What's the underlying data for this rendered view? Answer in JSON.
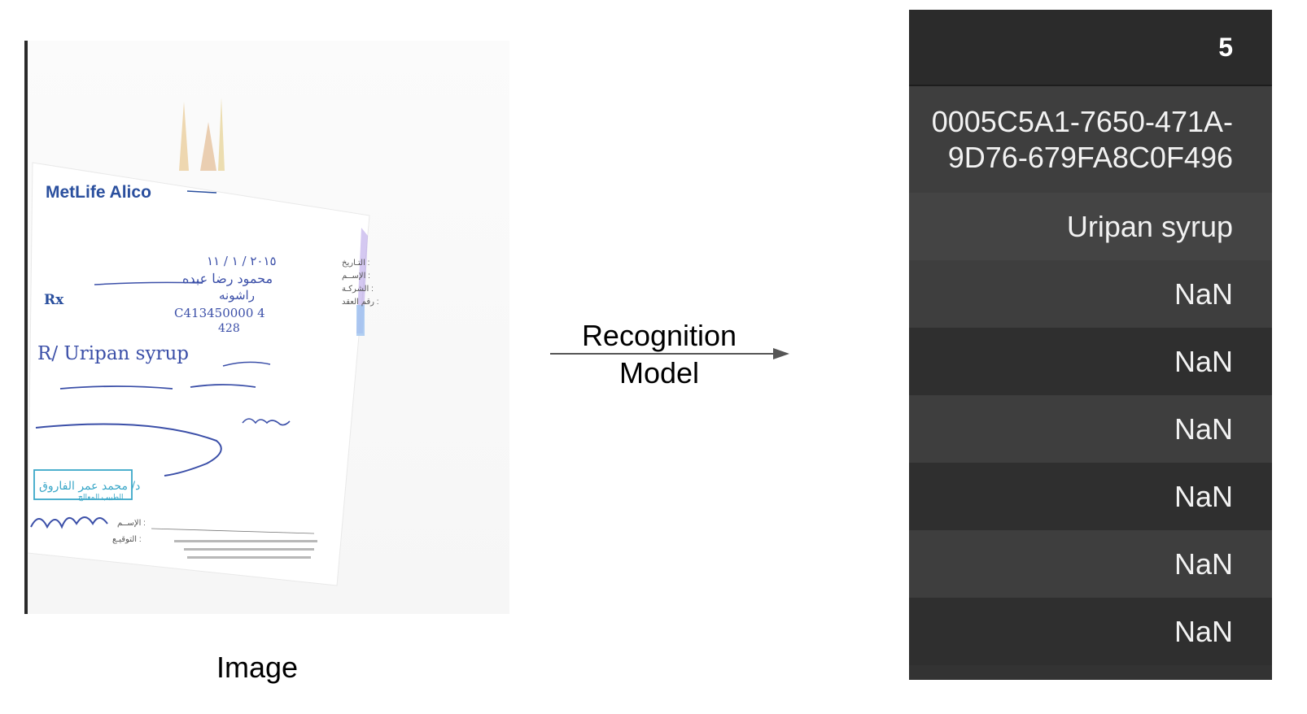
{
  "document": {
    "brand": "MetLife Alico",
    "rx_mark": "Rx",
    "field_labels": [
      "التـاريخ :",
      "الإســم :",
      "الشركـة :",
      "رقم العقد :"
    ],
    "field_values": [
      "٢٠١٥ / ١ / ١١",
      "محمود رضا عبده",
      "راشونه",
      "C413450000 4",
      "428"
    ],
    "prescription_line": "R/ Uripan syrup",
    "stamp_text": "د/ محمد عمر الفاروق",
    "stamp_subtitle": "الطبيب المعالج",
    "footer_labels": [
      "الإســم :",
      "التوقيـع :"
    ],
    "caption": "Image"
  },
  "arrow": {
    "label_line1": "Recognition",
    "label_line2": "Model"
  },
  "result_table": {
    "header": "5",
    "rows": [
      "0005C5A1-7650-471A-9D76-679FA8C0F496",
      "Uripan syrup",
      "NaN",
      "NaN",
      "NaN",
      "NaN",
      "NaN",
      "NaN"
    ]
  },
  "colors": {
    "brand_blue": "#2a4f9e",
    "ink_blue": "#3b4fa8",
    "stamp_cyan": "#3aa7c8",
    "table_dark": "#333333",
    "table_light": "#3e3e3e"
  }
}
